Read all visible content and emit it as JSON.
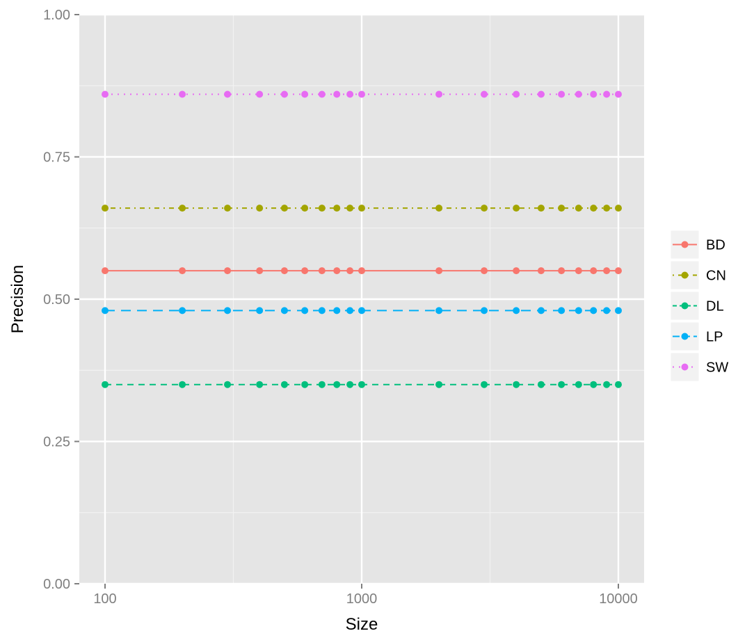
{
  "chart_data": {
    "type": "line",
    "title": "",
    "xlabel": "Size",
    "ylabel": "Precision",
    "x_scale": "log10",
    "xlim": [
      100,
      10000
    ],
    "ylim": [
      0,
      1
    ],
    "x_ticks": [
      {
        "value": 100,
        "label": "100"
      },
      {
        "value": 1000,
        "label": "1000"
      },
      {
        "value": 10000,
        "label": "10000"
      }
    ],
    "y_ticks": [
      {
        "value": 0,
        "label": "0.00"
      },
      {
        "value": 0.25,
        "label": "0.25"
      },
      {
        "value": 0.5,
        "label": "0.50"
      },
      {
        "value": 0.75,
        "label": "0.75"
      },
      {
        "value": 1,
        "label": "1.00"
      }
    ],
    "grid": true,
    "legend_position": "right",
    "x": [
      100,
      200,
      300,
      400,
      500,
      600,
      700,
      800,
      900,
      1000,
      2000,
      3000,
      4000,
      5000,
      6000,
      7000,
      8000,
      9000,
      10000
    ],
    "series": [
      {
        "name": "BD",
        "color": "#F8766D",
        "dash": "solid",
        "values": [
          0.55,
          0.55,
          0.55,
          0.55,
          0.55,
          0.55,
          0.55,
          0.55,
          0.55,
          0.55,
          0.55,
          0.55,
          0.55,
          0.55,
          0.55,
          0.55,
          0.55,
          0.55,
          0.55
        ]
      },
      {
        "name": "CN",
        "color": "#A3A500",
        "dash": "dotdash",
        "values": [
          0.66,
          0.66,
          0.66,
          0.66,
          0.66,
          0.66,
          0.66,
          0.66,
          0.66,
          0.66,
          0.66,
          0.66,
          0.66,
          0.66,
          0.66,
          0.66,
          0.66,
          0.66,
          0.66
        ]
      },
      {
        "name": "DL",
        "color": "#00BF7D",
        "dash": "dashed",
        "values": [
          0.35,
          0.35,
          0.35,
          0.35,
          0.35,
          0.35,
          0.35,
          0.35,
          0.35,
          0.35,
          0.35,
          0.35,
          0.35,
          0.35,
          0.35,
          0.35,
          0.35,
          0.35,
          0.35
        ]
      },
      {
        "name": "LP",
        "color": "#00B0F6",
        "dash": "longdash",
        "values": [
          0.48,
          0.48,
          0.48,
          0.48,
          0.48,
          0.48,
          0.48,
          0.48,
          0.48,
          0.48,
          0.48,
          0.48,
          0.48,
          0.48,
          0.48,
          0.48,
          0.48,
          0.48,
          0.48
        ]
      },
      {
        "name": "SW",
        "color": "#E76BF3",
        "dash": "dotted",
        "values": [
          0.86,
          0.86,
          0.86,
          0.86,
          0.86,
          0.86,
          0.86,
          0.86,
          0.86,
          0.86,
          0.86,
          0.86,
          0.86,
          0.86,
          0.86,
          0.86,
          0.86,
          0.86,
          0.86
        ]
      }
    ]
  }
}
